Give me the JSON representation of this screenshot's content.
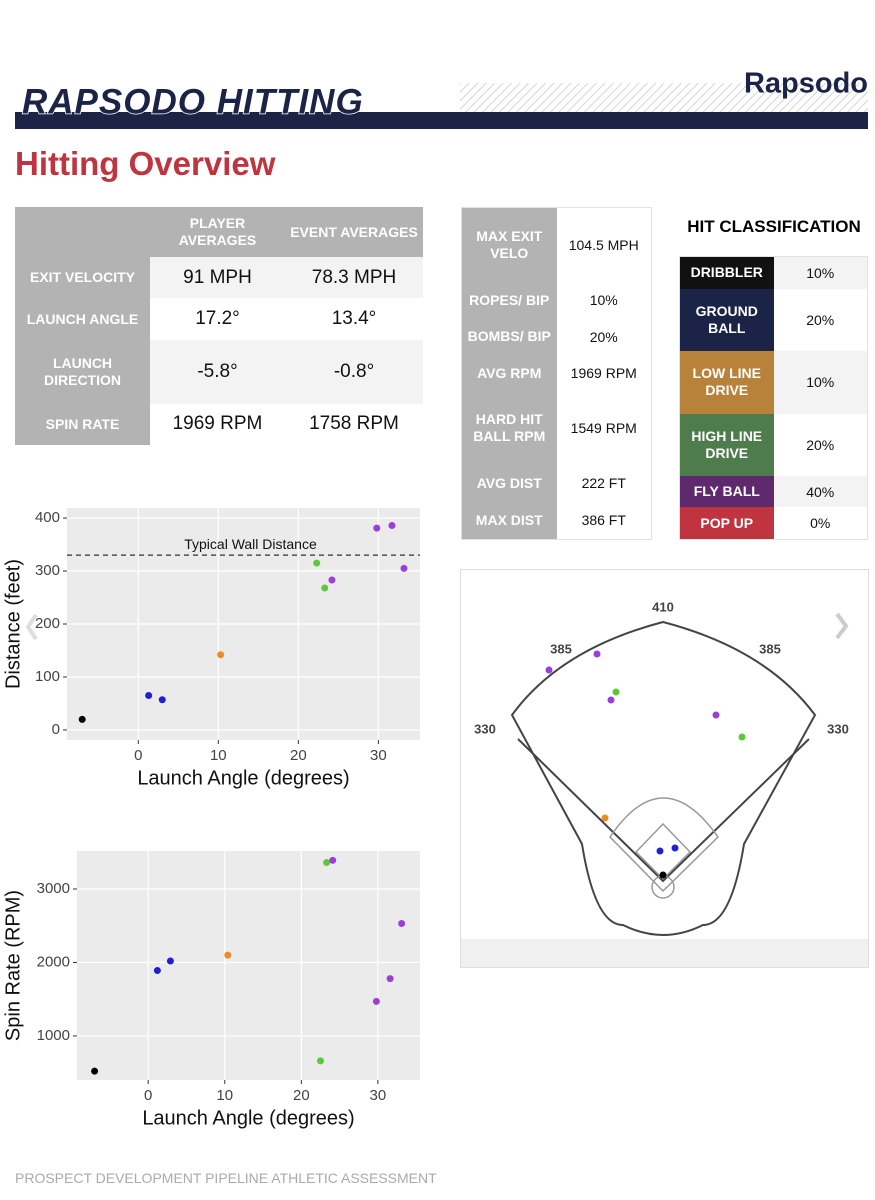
{
  "header": {
    "brand": "RAPSODO HITTING",
    "logo": "Rapsodo"
  },
  "title": "Hitting Overview",
  "averages": {
    "columns": [
      "PLAYER AVERAGES",
      "EVENT AVERAGES"
    ],
    "rows": [
      [
        "EXIT VELOCITY",
        "91 MPH",
        "78.3 MPH"
      ],
      [
        "LAUNCH ANGLE",
        "17.2°",
        "13.4°"
      ],
      [
        "LAUNCH DIRECTION",
        "-5.8°",
        "-0.8°"
      ],
      [
        "SPIN RATE",
        "1969 RPM",
        "1758 RPM"
      ]
    ]
  },
  "metrics": [
    [
      "MAX EXIT VELO",
      "104.5 MPH"
    ],
    [
      "ROPES/ BIP",
      "10%"
    ],
    [
      "BOMBS/ BIP",
      "20%"
    ],
    [
      "AVG RPM",
      "1969 RPM"
    ],
    [
      "HARD HIT BALL RPM",
      "1549 RPM"
    ],
    [
      "AVG DIST",
      "222 FT"
    ],
    [
      "MAX DIST",
      "386 FT"
    ]
  ],
  "hit_classification": {
    "title": "HIT CLASSIFICATION",
    "rows": [
      {
        "label": "DRIBBLER",
        "color": "#111111",
        "value": "10%"
      },
      {
        "label": "GROUND BALL",
        "color": "#1b2347",
        "value": "20%"
      },
      {
        "label": "LOW LINE DRIVE",
        "color": "#b8823a",
        "value": "10%"
      },
      {
        "label": "HIGH LINE DRIVE",
        "color": "#4e7c4d",
        "value": "20%"
      },
      {
        "label": "FLY BALL",
        "color": "#5e2a6d",
        "value": "40%"
      },
      {
        "label": "POP UP",
        "color": "#c0343f",
        "value": "0%"
      }
    ]
  },
  "spray_chart": {
    "distances": [
      "410",
      "385",
      "385",
      "330",
      "330"
    ]
  },
  "chart_data": [
    {
      "type": "scatter",
      "x_label": "Launch Angle (degrees)",
      "y_label": "Distance (feet)",
      "x": [
        -7,
        1.3,
        3,
        10.3,
        22.3,
        23.3,
        24.2,
        29.8,
        31.7,
        33.2
      ],
      "values": [
        20,
        65,
        57,
        142,
        315,
        268,
        283,
        381,
        386,
        305
      ],
      "colors": [
        "#000000",
        "#1f1fd6",
        "#1f1fd6",
        "#f08a24",
        "#5dc93a",
        "#5dc93a",
        "#9b3fd9",
        "#9b3fd9",
        "#9b3fd9",
        "#9b3fd9"
      ],
      "xlim": [
        -8.9,
        35.2
      ],
      "ylim": [
        -19,
        419
      ],
      "xticks": [
        0,
        10,
        20,
        30
      ],
      "yticks": [
        0,
        100,
        200,
        300,
        400
      ],
      "grid": true,
      "reference_line": {
        "value": 330,
        "label": "Typical Wall Distance"
      }
    },
    {
      "type": "scatter",
      "x_label": "Launch Angle (degrees)",
      "y_label": "Spin Rate (RPM)",
      "x": [
        -7,
        1.2,
        2.9,
        10.4,
        22.5,
        23.3,
        24.1,
        29.8,
        31.6,
        33.1
      ],
      "values": [
        520,
        1890,
        2020,
        2100,
        660,
        3360,
        3390,
        1470,
        1780,
        2530
      ],
      "colors": [
        "#000000",
        "#1f1fd6",
        "#1f1fd6",
        "#f08a24",
        "#5dc93a",
        "#5dc93a",
        "#9b3fd9",
        "#9b3fd9",
        "#9b3fd9",
        "#9b3fd9"
      ],
      "xlim": [
        -9.3,
        35.5
      ],
      "ylim": [
        400,
        3517
      ],
      "xticks": [
        0,
        10,
        20,
        30
      ],
      "yticks": [
        1000,
        2000,
        3000
      ],
      "grid": true
    }
  ]
}
